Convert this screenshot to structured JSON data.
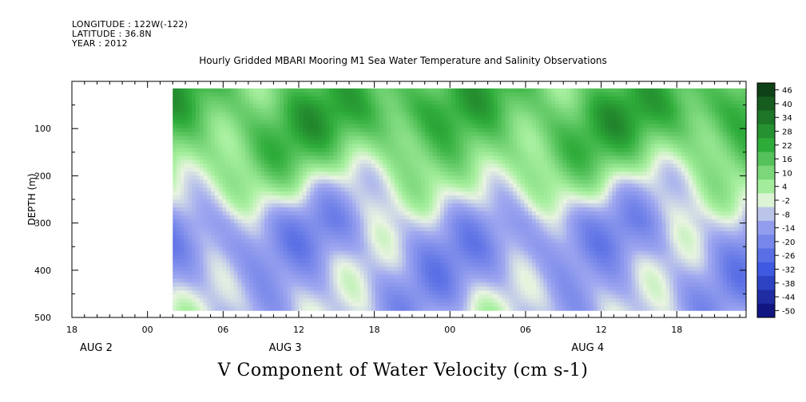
{
  "header": {
    "longitude": "LONGITUDE : 122W(-122)",
    "latitude": "LATITUDE : 36.8N",
    "year": "YEAR : 2012"
  },
  "chart_data": {
    "type": "heatmap",
    "title": "Hourly Gridded MBARI Mooring M1 Sea Water Temperature and Salinity Observations",
    "subtitle": "V Component of Water Velocity (cm s-1)",
    "xlabel": "",
    "ylabel": "DEPTH (m)",
    "ylim": [
      500,
      0
    ],
    "y_ticks": [
      100,
      200,
      300,
      400,
      500
    ],
    "x_tick_labels": [
      "18",
      "00",
      "06",
      "12",
      "18",
      "00",
      "06",
      "12",
      "18"
    ],
    "x_tick_hours": [
      -6,
      0,
      6,
      12,
      18,
      24,
      30,
      36,
      42
    ],
    "xlim_hours": [
      -6,
      47.5
    ],
    "data_start_hour": 2,
    "data_depth_range": [
      15,
      485
    ],
    "date_labels": [
      {
        "label": "AUG  2",
        "hour": -6
      },
      {
        "label": "AUG  3",
        "hour": 9
      },
      {
        "label": "AUG  4",
        "hour": 33
      }
    ],
    "colorbar_levels": [
      46,
      40,
      34,
      28,
      22,
      16,
      10,
      4,
      -2,
      -8,
      -14,
      -20,
      -26,
      -32,
      -38,
      -44,
      -50
    ],
    "colorbar_range": [
      -50,
      50
    ],
    "value_pattern_description_note": "",
    "field_profile": {
      "depths": [
        15,
        60,
        100,
        150,
        200,
        250,
        300,
        350,
        400,
        485
      ],
      "mean_values": [
        20,
        22,
        20,
        14,
        6,
        -2,
        -10,
        -12,
        -10,
        -6
      ]
    },
    "colors": {
      "max": "#0d3d14",
      "high": "#2eac3a",
      "mid_pos": "#a8f0a0",
      "zero": "#e8f4e0",
      "mid_neg": "#a0a8f0",
      "low": "#3a55e0",
      "min": "#0a0a70"
    }
  }
}
